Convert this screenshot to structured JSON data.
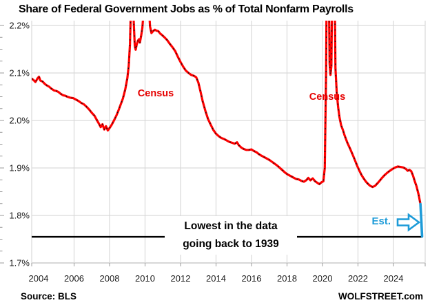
{
  "title": "Share of Federal Government Jobs as % of Total Nonfarm Payrolls",
  "source_label": "Source: BLS",
  "brand": "WOLFSTREET.com",
  "annotations": {
    "census_2010": "Census",
    "census_2020": "Census",
    "record_low_line1": "Lowest in the data",
    "record_low_line2": "going back to 1939",
    "estimate_label": "Est.",
    "estimate_arrow_icon": "right-arrow-outline"
  },
  "colors": {
    "line_red": "#ff0000",
    "line_dash_overlay": "#151515",
    "estimate_blue": "#1d9bd8",
    "record_low_line": "#000000",
    "grid": "#d9d9d9",
    "axis": "#bfbfbf",
    "tick": "#999999",
    "text": "#1a1a1a"
  },
  "chart_data": {
    "type": "line",
    "title": "Share of Federal Government Jobs as % of Total Nonfarm Payrolls",
    "xlabel": "",
    "ylabel": "",
    "grid": true,
    "legend": "none",
    "ylim": [
      1.7,
      2.2
    ],
    "xlim": [
      2003.6,
      2025.8
    ],
    "y_tick_labels": [
      "2.2%",
      "2.1%",
      "2.0%",
      "1.9%",
      "1.8%",
      "1.7%"
    ],
    "y_tick_values": [
      2.2,
      2.1,
      2.0,
      1.9,
      1.8,
      1.7
    ],
    "y_minor_tick_step": 0.025,
    "x_tick_labels": [
      "2004",
      "2006",
      "2008",
      "2010",
      "2012",
      "2014",
      "2016",
      "2018",
      "2020",
      "2022",
      "2024"
    ],
    "x_tick_values": [
      2004,
      2006,
      2008,
      2010,
      2012,
      2014,
      2016,
      2018,
      2020,
      2022,
      2024
    ],
    "record_low_value": 1.755,
    "clip_top_value": 2.21,
    "series": [
      {
        "name": "federal-share-of-payrolls",
        "color": "#ff0000",
        "style": "red-with-black-dashes",
        "points": [
          [
            2003.61,
            2.088
          ],
          [
            2003.72,
            2.085
          ],
          [
            2003.82,
            2.081
          ],
          [
            2003.95,
            2.089
          ],
          [
            2004.02,
            2.092
          ],
          [
            2004.1,
            2.084
          ],
          [
            2004.22,
            2.082
          ],
          [
            2004.35,
            2.077
          ],
          [
            2004.45,
            2.074
          ],
          [
            2004.6,
            2.071
          ],
          [
            2004.72,
            2.067
          ],
          [
            2004.88,
            2.063
          ],
          [
            2005.0,
            2.062
          ],
          [
            2005.12,
            2.06
          ],
          [
            2005.25,
            2.056
          ],
          [
            2005.38,
            2.053
          ],
          [
            2005.5,
            2.052
          ],
          [
            2005.62,
            2.05
          ],
          [
            2005.78,
            2.048
          ],
          [
            2005.95,
            2.047
          ],
          [
            2006.1,
            2.044
          ],
          [
            2006.25,
            2.041
          ],
          [
            2006.4,
            2.037
          ],
          [
            2006.55,
            2.034
          ],
          [
            2006.7,
            2.029
          ],
          [
            2006.85,
            2.023
          ],
          [
            2007.0,
            2.016
          ],
          [
            2007.15,
            2.01
          ],
          [
            2007.28,
            2.001
          ],
          [
            2007.4,
            1.993
          ],
          [
            2007.5,
            1.986
          ],
          [
            2007.6,
            1.992
          ],
          [
            2007.7,
            1.981
          ],
          [
            2007.8,
            1.988
          ],
          [
            2007.9,
            1.979
          ],
          [
            2008.0,
            1.984
          ],
          [
            2008.12,
            1.991
          ],
          [
            2008.25,
            2.0
          ],
          [
            2008.38,
            2.01
          ],
          [
            2008.5,
            2.021
          ],
          [
            2008.62,
            2.033
          ],
          [
            2008.75,
            2.046
          ],
          [
            2008.88,
            2.065
          ],
          [
            2009.0,
            2.089
          ],
          [
            2009.08,
            2.115
          ],
          [
            2009.15,
            2.16
          ],
          [
            2009.22,
            2.26
          ],
          [
            2009.3,
            2.3
          ],
          [
            2009.36,
            2.21
          ],
          [
            2009.42,
            2.157
          ],
          [
            2009.47,
            2.149
          ],
          [
            2009.53,
            2.16
          ],
          [
            2009.6,
            2.168
          ],
          [
            2009.66,
            2.171
          ],
          [
            2009.71,
            2.164
          ],
          [
            2009.78,
            2.178
          ],
          [
            2009.85,
            2.195
          ],
          [
            2009.92,
            2.23
          ],
          [
            2010.0,
            2.28
          ],
          [
            2010.1,
            2.29
          ],
          [
            2010.2,
            2.25
          ],
          [
            2010.28,
            2.198
          ],
          [
            2010.36,
            2.184
          ],
          [
            2010.45,
            2.188
          ],
          [
            2010.55,
            2.191
          ],
          [
            2010.65,
            2.189
          ],
          [
            2010.75,
            2.188
          ],
          [
            2010.85,
            2.183
          ],
          [
            2010.95,
            2.18
          ],
          [
            2011.1,
            2.175
          ],
          [
            2011.25,
            2.169
          ],
          [
            2011.4,
            2.161
          ],
          [
            2011.55,
            2.154
          ],
          [
            2011.7,
            2.146
          ],
          [
            2011.85,
            2.134
          ],
          [
            2012.0,
            2.123
          ],
          [
            2012.15,
            2.113
          ],
          [
            2012.3,
            2.105
          ],
          [
            2012.45,
            2.1
          ],
          [
            2012.6,
            2.096
          ],
          [
            2012.75,
            2.094
          ],
          [
            2012.88,
            2.091
          ],
          [
            2013.0,
            2.08
          ],
          [
            2013.12,
            2.062
          ],
          [
            2013.25,
            2.04
          ],
          [
            2013.4,
            2.02
          ],
          [
            2013.55,
            2.003
          ],
          [
            2013.7,
            1.991
          ],
          [
            2013.85,
            1.98
          ],
          [
            2014.0,
            1.972
          ],
          [
            2014.15,
            1.967
          ],
          [
            2014.3,
            1.963
          ],
          [
            2014.45,
            1.961
          ],
          [
            2014.6,
            1.958
          ],
          [
            2014.75,
            1.955
          ],
          [
            2014.9,
            1.953
          ],
          [
            2015.05,
            1.951
          ],
          [
            2015.18,
            1.954
          ],
          [
            2015.28,
            1.948
          ],
          [
            2015.42,
            1.943
          ],
          [
            2015.55,
            1.94
          ],
          [
            2015.7,
            1.938
          ],
          [
            2015.85,
            1.938
          ],
          [
            2016.0,
            1.939
          ],
          [
            2016.12,
            1.936
          ],
          [
            2016.28,
            1.933
          ],
          [
            2016.42,
            1.929
          ],
          [
            2016.55,
            1.926
          ],
          [
            2016.7,
            1.923
          ],
          [
            2016.85,
            1.92
          ],
          [
            2017.0,
            1.917
          ],
          [
            2017.15,
            1.913
          ],
          [
            2017.3,
            1.909
          ],
          [
            2017.45,
            1.905
          ],
          [
            2017.6,
            1.9
          ],
          [
            2017.75,
            1.895
          ],
          [
            2017.9,
            1.89
          ],
          [
            2018.05,
            1.886
          ],
          [
            2018.2,
            1.883
          ],
          [
            2018.35,
            1.88
          ],
          [
            2018.5,
            1.877
          ],
          [
            2018.65,
            1.876
          ],
          [
            2018.8,
            1.873
          ],
          [
            2018.95,
            1.871
          ],
          [
            2019.08,
            1.874
          ],
          [
            2019.2,
            1.879
          ],
          [
            2019.32,
            1.874
          ],
          [
            2019.45,
            1.878
          ],
          [
            2019.58,
            1.872
          ],
          [
            2019.7,
            1.869
          ],
          [
            2019.82,
            1.866
          ],
          [
            2019.95,
            1.87
          ],
          [
            2020.05,
            1.872
          ],
          [
            2020.13,
            1.9
          ],
          [
            2020.2,
            2.1
          ],
          [
            2020.26,
            2.42
          ],
          [
            2020.33,
            2.38
          ],
          [
            2020.4,
            2.12
          ],
          [
            2020.45,
            2.096
          ],
          [
            2020.5,
            2.115
          ],
          [
            2020.55,
            2.3
          ],
          [
            2020.62,
            2.4
          ],
          [
            2020.68,
            2.3
          ],
          [
            2020.73,
            2.11
          ],
          [
            2020.8,
            2.06
          ],
          [
            2020.88,
            2.028
          ],
          [
            2020.95,
            2.008
          ],
          [
            2021.05,
            1.99
          ],
          [
            2021.15,
            1.98
          ],
          [
            2021.25,
            1.968
          ],
          [
            2021.4,
            1.953
          ],
          [
            2021.55,
            1.941
          ],
          [
            2021.7,
            1.928
          ],
          [
            2021.82,
            1.917
          ],
          [
            2021.95,
            1.905
          ],
          [
            2022.08,
            1.894
          ],
          [
            2022.2,
            1.885
          ],
          [
            2022.32,
            1.878
          ],
          [
            2022.45,
            1.871
          ],
          [
            2022.58,
            1.866
          ],
          [
            2022.7,
            1.862
          ],
          [
            2022.82,
            1.86
          ],
          [
            2022.95,
            1.862
          ],
          [
            2023.08,
            1.867
          ],
          [
            2023.2,
            1.872
          ],
          [
            2023.35,
            1.879
          ],
          [
            2023.5,
            1.885
          ],
          [
            2023.65,
            1.89
          ],
          [
            2023.8,
            1.894
          ],
          [
            2023.95,
            1.898
          ],
          [
            2024.1,
            1.901
          ],
          [
            2024.25,
            1.903
          ],
          [
            2024.4,
            1.902
          ],
          [
            2024.55,
            1.901
          ],
          [
            2024.7,
            1.898
          ],
          [
            2024.8,
            1.894
          ],
          [
            2024.9,
            1.896
          ],
          [
            2025.0,
            1.893
          ],
          [
            2025.1,
            1.884
          ],
          [
            2025.2,
            1.872
          ],
          [
            2025.3,
            1.861
          ],
          [
            2025.42,
            1.843
          ],
          [
            2025.52,
            1.824
          ]
        ]
      },
      {
        "name": "estimate",
        "color": "#1d9bd8",
        "style": "solid",
        "points": [
          [
            2025.52,
            1.824
          ],
          [
            2025.57,
            1.79
          ],
          [
            2025.61,
            1.756
          ]
        ]
      }
    ]
  }
}
